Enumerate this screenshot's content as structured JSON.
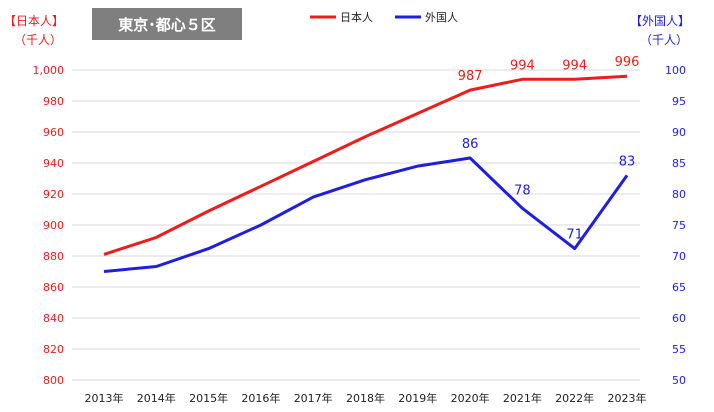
{
  "title": "東京･都心５区",
  "left_axis_label": [
    "【日本人】",
    "（千人）"
  ],
  "right_axis_label": [
    "【外国人】",
    "（千人）"
  ],
  "colors": {
    "japanese": "#ee1c1c",
    "foreign": "#1f1fdd",
    "title_bg": "#7f7f7f",
    "grid": "#d9d9d9"
  },
  "chart_data": {
    "type": "line",
    "title": "東京･都心５区",
    "categories": [
      "2013年",
      "2014年",
      "2015年",
      "2016年",
      "2017年",
      "2018年",
      "2019年",
      "2020年",
      "2021年",
      "2022年",
      "2023年"
    ],
    "legend_position": "top",
    "grid": true,
    "y_left": {
      "ylim": [
        800,
        1000
      ],
      "ticks": [
        "800",
        "820",
        "840",
        "860",
        "880",
        "900",
        "920",
        "940",
        "960",
        "980",
        "1,000"
      ]
    },
    "y_right": {
      "ylim": [
        50,
        100
      ],
      "ticks": [
        "50",
        "55",
        "60",
        "65",
        "70",
        "75",
        "80",
        "85",
        "90",
        "95",
        "100"
      ]
    },
    "series": [
      {
        "name": "日本人",
        "axis": "left",
        "color": "#ee1c1c",
        "values": [
          881,
          892,
          909,
          925,
          941,
          957,
          972,
          987,
          994,
          994,
          996
        ],
        "labels": [
          "",
          "",
          "",
          "",
          "",
          "",
          "",
          "987",
          "994",
          "994",
          "996"
        ]
      },
      {
        "name": "外国人",
        "axis": "right",
        "color": "#1f1fdd",
        "values": [
          67.5,
          68.3,
          71.2,
          75.0,
          79.5,
          82.3,
          84.5,
          85.8,
          77.7,
          71.2,
          83.0
        ],
        "labels": [
          "",
          "",
          "",
          "",
          "",
          "",
          "",
          "86",
          "78",
          "71",
          "83"
        ]
      }
    ]
  }
}
